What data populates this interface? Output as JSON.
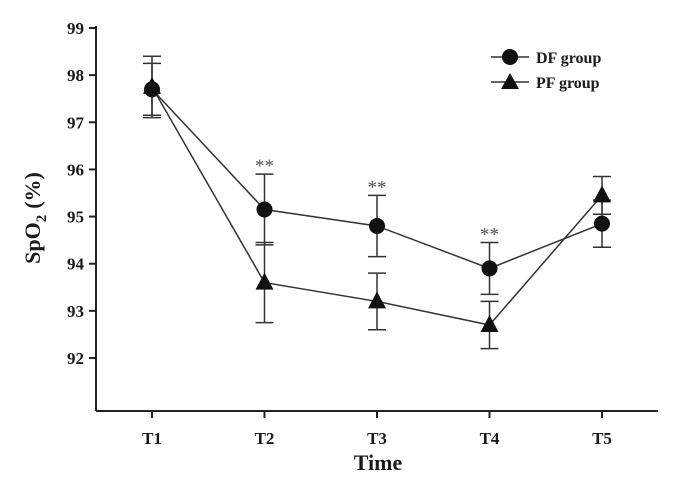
{
  "chart_data": {
    "type": "line",
    "xlabel": "Time",
    "ylabel_main": "SpO",
    "ylabel_sub": "2",
    "ylabel_unit": "(%)",
    "categories": [
      "T1",
      "T2",
      "T3",
      "T4",
      "T5"
    ],
    "ylim": [
      91.5,
      99
    ],
    "yticks": [
      92,
      93,
      94,
      95,
      96,
      97,
      98,
      99
    ],
    "grid": false,
    "legend_position": "top-right",
    "series": [
      {
        "name": "DF group",
        "marker": "circle",
        "values": [
          97.7,
          95.15,
          94.8,
          93.9,
          94.85
        ],
        "error": [
          0.55,
          0.75,
          0.65,
          0.55,
          0.5
        ]
      },
      {
        "name": "PF group",
        "marker": "triangle",
        "values": [
          97.75,
          93.6,
          93.2,
          92.7,
          95.45
        ],
        "error": [
          0.65,
          0.85,
          0.6,
          0.5,
          0.4
        ]
      }
    ],
    "annotations": [
      {
        "category": "T2",
        "text": "**"
      },
      {
        "category": "T3",
        "text": "**"
      },
      {
        "category": "T4",
        "text": "**"
      }
    ]
  }
}
